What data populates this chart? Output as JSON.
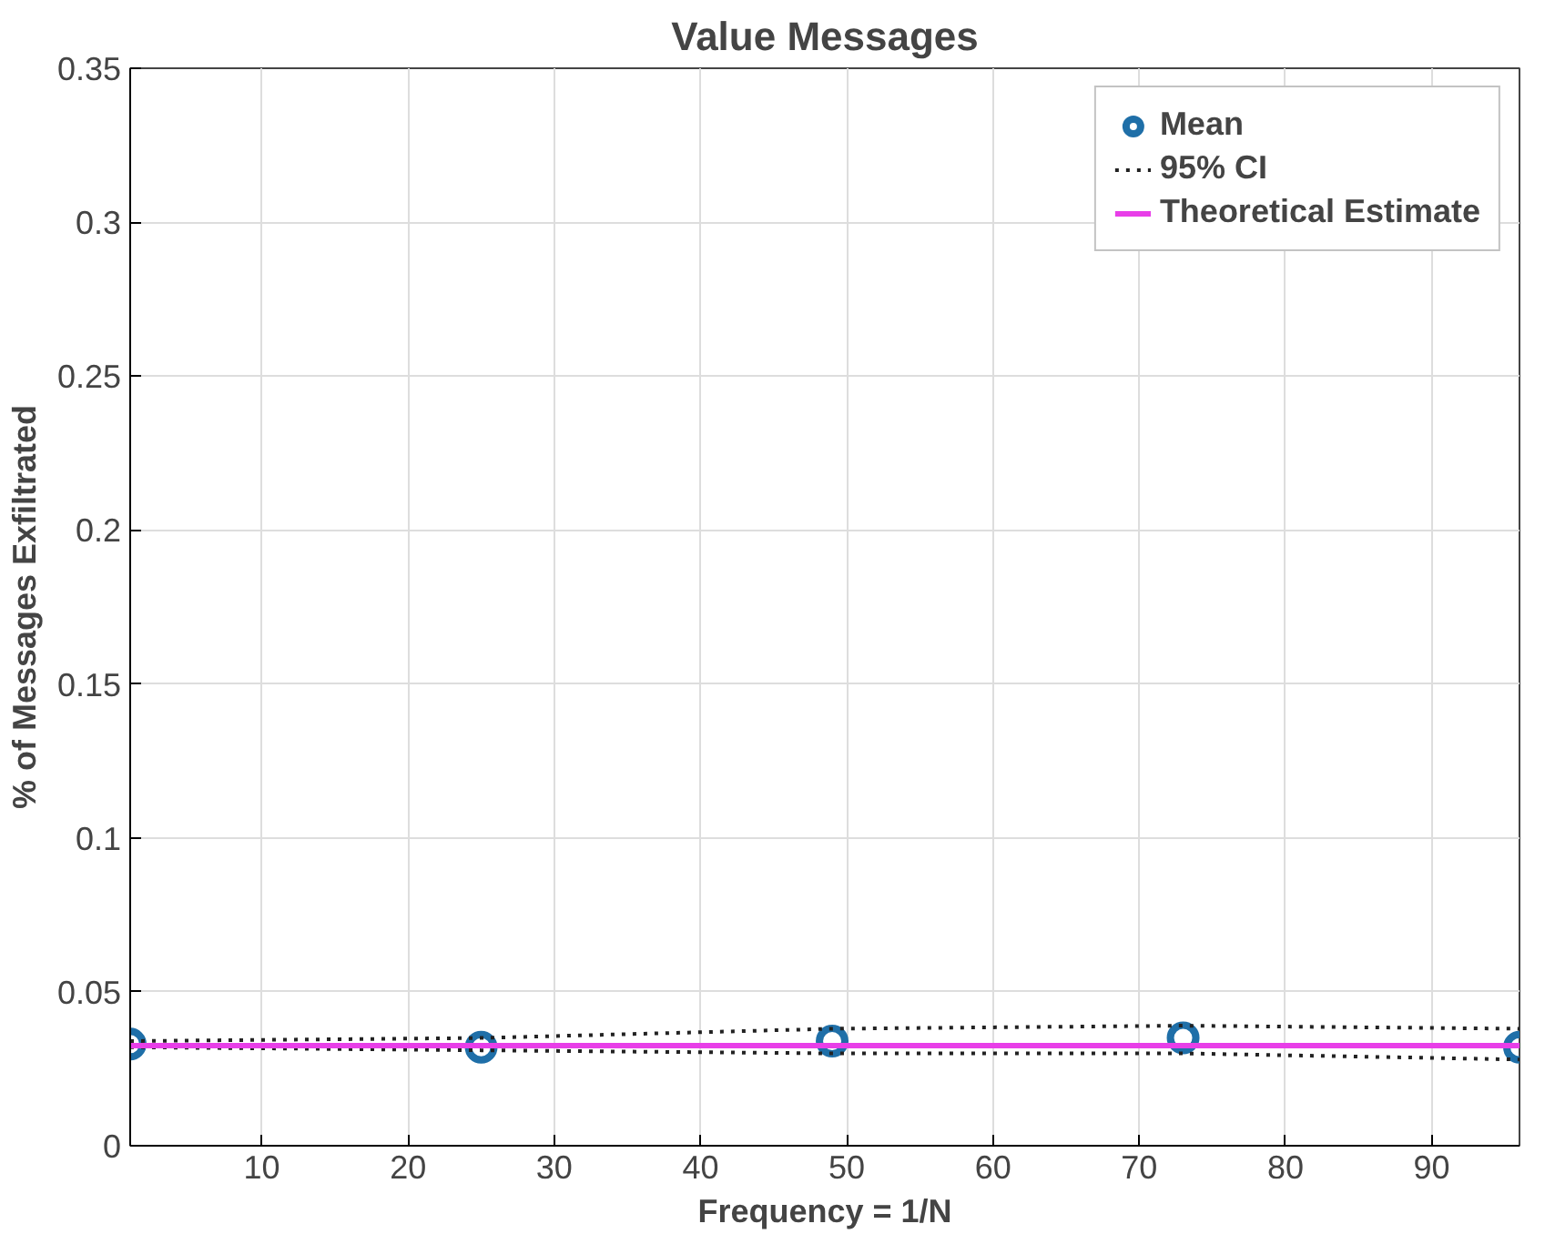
{
  "chart_data": {
    "type": "line",
    "title": "Value Messages",
    "xlabel": "Frequency = 1/N",
    "ylabel": "% of Messages Exfiltrated",
    "x": [
      1,
      25,
      49,
      73,
      96
    ],
    "series": [
      {
        "name": "Mean",
        "type": "scatter",
        "marker": "circle",
        "color": "#1f6fa8",
        "values": [
          0.033,
          0.032,
          0.034,
          0.035,
          0.032
        ]
      },
      {
        "name": "95% CI",
        "line_style": "dotted",
        "color": "#222222",
        "values": [
          0.034,
          0.035,
          0.038,
          0.039,
          0.038
        ]
      },
      {
        "line_style": "dotted",
        "color": "#222222",
        "values": [
          0.032,
          0.031,
          0.03,
          0.03,
          0.028
        ]
      },
      {
        "name": "Theoretical Estimate",
        "line_style": "solid",
        "color": "#e83ee8",
        "values": [
          0.0325,
          0.0325,
          0.0325,
          0.0325,
          0.0325
        ]
      }
    ],
    "xlim": [
      1,
      96
    ],
    "xticks": [
      10,
      20,
      30,
      40,
      50,
      60,
      70,
      80,
      90
    ],
    "ylim": [
      0,
      0.35
    ],
    "yticks": [
      0,
      0.05,
      0.1,
      0.15,
      0.2,
      0.25,
      0.3,
      0.35
    ],
    "grid": true,
    "legend": "top right"
  }
}
